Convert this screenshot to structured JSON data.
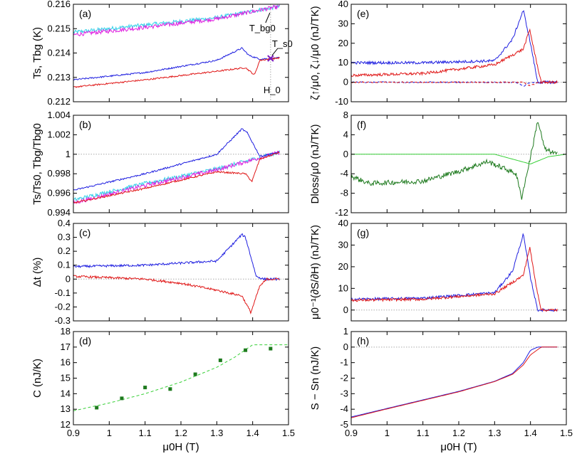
{
  "chart_data": {
    "type": "line",
    "x_axis": {
      "label": "μ0H (T)",
      "range": [
        0.9,
        1.5
      ],
      "ticks": [
        "0.9",
        "1",
        "1.1",
        "1.2",
        "1.3",
        "1.4",
        "1.5"
      ]
    },
    "colors": {
      "blue": "#2020e0",
      "red": "#e01818",
      "magenta": "#e020e0",
      "cyan": "#30d0e8",
      "green": "#1e7a1e",
      "light_green": "#38d038",
      "gray": "#aaaaaa"
    },
    "panels": [
      {
        "id": "a",
        "label": "(a)",
        "ylabel": "Ts, Tbg (K)",
        "ylim": [
          0.212,
          0.216
        ],
        "yticks": [
          "0.212",
          "0.213",
          "0.214",
          "0.215",
          "0.216"
        ],
        "series": [
          {
            "name": "T_bg (cyan)",
            "color": "cyan",
            "noise": 8e-05,
            "x": [
              0.9,
              1.1,
              1.3,
              1.45,
              1.475
            ],
            "y": [
              0.21485,
              0.21515,
              0.21545,
              0.21585,
              0.2159
            ]
          },
          {
            "name": "T_bg (magenta)",
            "color": "magenta",
            "noise": 8e-05,
            "x": [
              0.9,
              1.1,
              1.3,
              1.45,
              1.475
            ],
            "y": [
              0.21475,
              0.21505,
              0.2154,
              0.21585,
              0.2159
            ]
          },
          {
            "name": "T_s (blue)",
            "color": "blue",
            "noise": 3e-05,
            "x": [
              0.9,
              1.1,
              1.3,
              1.37,
              1.39,
              1.42,
              1.475
            ],
            "y": [
              0.2129,
              0.2132,
              0.2137,
              0.2142,
              0.2139,
              0.21375,
              0.2138
            ]
          },
          {
            "name": "T_s (red)",
            "color": "red",
            "noise": 3e-05,
            "x": [
              0.9,
              1.1,
              1.3,
              1.38,
              1.405,
              1.42,
              1.475
            ],
            "y": [
              0.2126,
              0.2129,
              0.21325,
              0.2134,
              0.2131,
              0.2137,
              0.2138
            ]
          }
        ],
        "vline": {
          "x": 1.45,
          "color": "gray"
        },
        "annotations": {
          "Tbg0": "T_bg0",
          "Ts0": "T_s0",
          "H0": "H_0"
        }
      },
      {
        "id": "b",
        "label": "(b)",
        "ylabel": "Ts/Ts0, Tbg/Tbg0",
        "ylim": [
          0.994,
          1.004
        ],
        "yticks": [
          "0.994",
          "0.996",
          "0.998",
          "1",
          "1.002",
          "1.004"
        ],
        "hline": 1.0,
        "series": [
          {
            "name": "bg (cyan)",
            "color": "cyan",
            "noise": 0.0002,
            "x": [
              0.9,
              1.1,
              1.3,
              1.475
            ],
            "y": [
              0.9953,
              0.997,
              0.9985,
              1.0002
            ]
          },
          {
            "name": "bg (magenta)",
            "color": "magenta",
            "noise": 0.0002,
            "x": [
              0.9,
              1.1,
              1.3,
              1.475
            ],
            "y": [
              0.995,
              0.9968,
              0.9984,
              1.0002
            ]
          },
          {
            "name": "s (blue)",
            "color": "blue",
            "noise": 8e-05,
            "x": [
              0.9,
              1.1,
              1.3,
              1.37,
              1.385,
              1.42,
              1.475
            ],
            "y": [
              0.9963,
              0.998,
              1.0,
              1.0026,
              1.0022,
              0.9998,
              1.0002
            ]
          },
          {
            "name": "s (red)",
            "color": "red",
            "noise": 8e-05,
            "x": [
              0.9,
              1.1,
              1.3,
              1.38,
              1.398,
              1.42,
              1.475
            ],
            "y": [
              0.995,
              0.9965,
              0.9982,
              0.998,
              0.9972,
              0.9995,
              1.0002
            ]
          }
        ]
      },
      {
        "id": "c",
        "label": "(c)",
        "ylabel": "Δt (%)",
        "ylim": [
          -0.3,
          0.4
        ],
        "yticks": [
          "-0.3",
          "-0.2",
          "-0.1",
          "0",
          "0.1",
          "0.2",
          "0.3",
          "0.4"
        ],
        "hline": 0,
        "series": [
          {
            "name": "blue",
            "color": "blue",
            "noise": 0.008,
            "x": [
              0.9,
              1.1,
              1.3,
              1.37,
              1.38,
              1.41,
              1.43,
              1.475
            ],
            "y": [
              0.09,
              0.1,
              0.13,
              0.32,
              0.3,
              0.02,
              0.0,
              0.0
            ]
          },
          {
            "name": "red",
            "color": "red",
            "noise": 0.008,
            "x": [
              0.9,
              1.1,
              1.2,
              1.3,
              1.37,
              1.395,
              1.42,
              1.44,
              1.475
            ],
            "y": [
              0.02,
              0.0,
              -0.03,
              -0.08,
              -0.12,
              -0.24,
              -0.05,
              0.0,
              0.0
            ]
          }
        ]
      },
      {
        "id": "d",
        "label": "(d)",
        "ylabel": "C (nJ/K)",
        "ylim": [
          12,
          18
        ],
        "yticks": [
          "12",
          "13",
          "14",
          "15",
          "16",
          "17",
          "18"
        ],
        "points": {
          "color": "green",
          "x": [
            0.965,
            1.035,
            1.1,
            1.17,
            1.24,
            1.31,
            1.38,
            1.45
          ],
          "y": [
            13.1,
            13.7,
            14.4,
            14.3,
            15.25,
            16.15,
            16.8,
            16.9
          ]
        },
        "fit": {
          "color": "light_green",
          "x": [
            0.9,
            1.0,
            1.1,
            1.2,
            1.3,
            1.35,
            1.4,
            1.5
          ],
          "y": [
            12.9,
            13.4,
            14.0,
            14.75,
            15.7,
            16.35,
            17.15,
            17.15
          ]
        }
      },
      {
        "id": "e",
        "label": "(e)",
        "ylabel": "ζ↑/μ0, ζ↓/μ0 (nJ/TK)",
        "ylim": [
          -10,
          40
        ],
        "yticks": [
          "-10",
          "0",
          "10",
          "20",
          "30",
          "40"
        ],
        "hline": 0,
        "series": [
          {
            "name": "ζ↑ blue",
            "color": "blue",
            "noise": 0.7,
            "x": [
              0.9,
              1.1,
              1.3,
              1.35,
              1.38,
              1.4,
              1.42,
              1.475
            ],
            "y": [
              10,
              10,
              11,
              22,
              37,
              20,
              0,
              0
            ]
          },
          {
            "name": "ζ↑ red",
            "color": "red",
            "noise": 0.7,
            "x": [
              0.9,
              1.1,
              1.3,
              1.38,
              1.398,
              1.415,
              1.43,
              1.475
            ],
            "y": [
              3.5,
              4.5,
              9,
              17,
              27,
              12,
              0,
              0
            ]
          },
          {
            "name": "ζ↓ blue",
            "color": "blue",
            "noise": 0.3,
            "dashed": true,
            "x": [
              0.9,
              1.36,
              1.38,
              1.4,
              1.475
            ],
            "y": [
              0,
              0,
              -2,
              0,
              0
            ]
          },
          {
            "name": "ζ↓ red",
            "color": "red",
            "noise": 0.3,
            "dashed": true,
            "x": [
              0.9,
              1.38,
              1.4,
              1.42,
              1.475
            ],
            "y": [
              0,
              0,
              -2,
              0,
              0
            ]
          }
        ]
      },
      {
        "id": "f",
        "label": "(f)",
        "ylabel": "Dloss/μ0 (nJ/TK)",
        "ylim": [
          -12,
          8
        ],
        "yticks": [
          "-12",
          "-8",
          "-4",
          "0",
          "4",
          "8"
        ],
        "hline": 0,
        "series": [
          {
            "name": "D_loss",
            "color": "green",
            "noise": 0.5,
            "x": [
              0.9,
              0.95,
              1.1,
              1.2,
              1.28,
              1.33,
              1.36,
              1.375,
              1.39,
              1.41,
              1.42,
              1.44,
              1.475
            ],
            "y": [
              -4.5,
              -6,
              -5.5,
              -3.5,
              -1.5,
              -3,
              -4,
              -9,
              -4,
              3,
              7,
              1,
              0
            ]
          },
          {
            "name": "model",
            "color": "light_green",
            "noise": 0,
            "x": [
              0.9,
              1.3,
              1.35,
              1.4,
              1.45,
              1.5
            ],
            "y": [
              0,
              0,
              -1,
              -2,
              -0.5,
              0
            ]
          }
        ]
      },
      {
        "id": "g",
        "label": "(g)",
        "ylabel": "μ0⁻¹(∂S/∂H) (nJ/TK)",
        "ylim": [
          -5,
          40
        ],
        "yticks": [
          "0",
          "10",
          "20",
          "30",
          "40"
        ],
        "hline": 0,
        "series": [
          {
            "name": "blue",
            "color": "blue",
            "noise": 0.6,
            "x": [
              0.9,
              1.1,
              1.3,
              1.35,
              1.38,
              1.4,
              1.42,
              1.475
            ],
            "y": [
              5,
              5.5,
              8,
              18,
              35,
              15,
              0,
              0
            ]
          },
          {
            "name": "red",
            "color": "red",
            "noise": 0.6,
            "x": [
              0.9,
              1.1,
              1.3,
              1.38,
              1.398,
              1.415,
              1.43,
              1.475
            ],
            "y": [
              4.5,
              5,
              7.5,
              16,
              29,
              12,
              0,
              0
            ]
          }
        ]
      },
      {
        "id": "h",
        "label": "(h)",
        "ylabel": "S − Sn (nJ/K)",
        "ylim": [
          -5,
          1
        ],
        "yticks": [
          "-5",
          "-4",
          "-3",
          "-2",
          "-1",
          "0",
          "1"
        ],
        "hline": 0,
        "series": [
          {
            "name": "blue",
            "color": "blue",
            "noise": 0,
            "x": [
              0.9,
              1.0,
              1.1,
              1.2,
              1.3,
              1.35,
              1.38,
              1.4,
              1.42,
              1.475
            ],
            "y": [
              -4.5,
              -3.95,
              -3.4,
              -2.85,
              -2.2,
              -1.7,
              -1.0,
              -0.2,
              0.0,
              0.0
            ]
          },
          {
            "name": "red",
            "color": "red",
            "noise": 0,
            "x": [
              0.9,
              1.0,
              1.1,
              1.2,
              1.3,
              1.35,
              1.38,
              1.4,
              1.43,
              1.475
            ],
            "y": [
              -4.55,
              -3.98,
              -3.43,
              -2.88,
              -2.22,
              -1.75,
              -1.15,
              -0.5,
              0.0,
              0.0
            ]
          }
        ]
      }
    ]
  }
}
